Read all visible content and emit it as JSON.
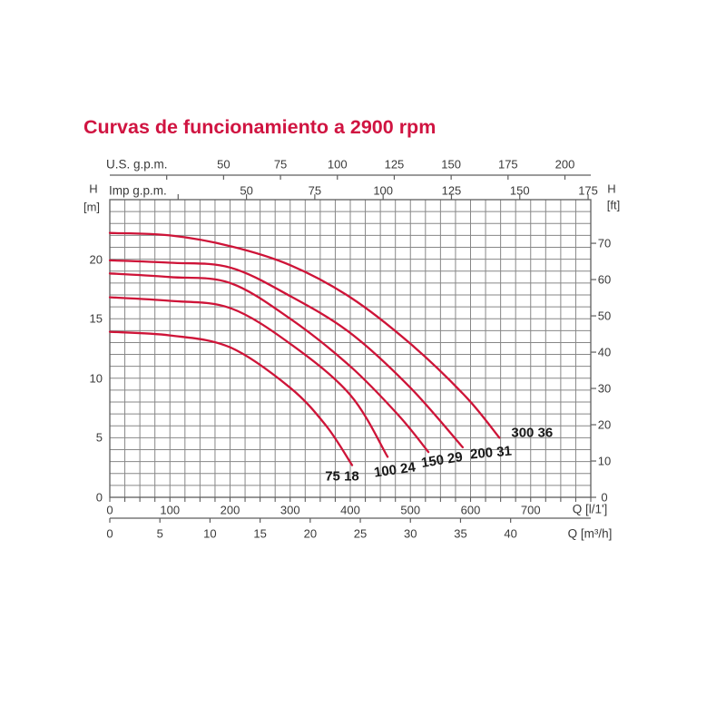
{
  "chart_data": {
    "type": "line",
    "title": "Curvas de funcionamiento a 2900 rpm",
    "title_color": "#d01441",
    "curve_color": "#ce1438",
    "grid_color": "#878787",
    "axis_color": "#5e5e5e",
    "text_color": "#3a3a3a",
    "grid": true,
    "x_axis_top_us": {
      "unit": "U.S. g.p.m.",
      "tick_labels": [
        50,
        75,
        100,
        125,
        150,
        175,
        200
      ],
      "tick_marks": [
        25,
        50,
        75,
        100,
        125,
        150,
        175,
        200
      ],
      "liters_per_unit": 3.785
    },
    "x_axis_top_imp": {
      "unit": "Imp g.p.m.",
      "tick_labels": [
        50,
        75,
        100,
        125,
        150,
        175
      ],
      "tick_marks": [
        25,
        50,
        75,
        100,
        125,
        150,
        175
      ],
      "liters_per_unit": 4.546
    },
    "x_axis_bottom_lmin": {
      "unit": "Q [l/1']",
      "tick_labels": [
        0,
        100,
        200,
        300,
        400,
        500,
        600,
        700
      ],
      "range": [
        0,
        800
      ],
      "minor_step": 25
    },
    "x_axis_bottom_m3h": {
      "unit": "Q [m³/h]",
      "tick_labels": [
        0,
        5,
        10,
        15,
        20,
        25,
        30,
        35,
        40
      ],
      "liters_per_unit": 16.6667
    },
    "y_axis_left": {
      "name": "H",
      "unit": "[m]",
      "tick_labels": [
        0,
        5,
        10,
        15,
        20
      ],
      "range": [
        0,
        25
      ],
      "minor_step": 1
    },
    "y_axis_right": {
      "name": "H",
      "unit": "[ft]",
      "tick_labels": [
        0,
        10,
        20,
        30,
        40,
        50,
        60,
        70
      ],
      "meters_per_unit": 0.3048
    },
    "series": [
      {
        "name": "75 18",
        "points": [
          [
            0,
            13.9
          ],
          [
            100,
            13.6
          ],
          [
            200,
            12.6
          ],
          [
            300,
            9.2
          ],
          [
            360,
            6.0
          ],
          [
            403,
            2.7
          ]
        ],
        "label_offset": [
          -11,
          12
        ],
        "label_rotation_deg": 0
      },
      {
        "name": "100 24",
        "points": [
          [
            0,
            16.8
          ],
          [
            100,
            16.5
          ],
          [
            200,
            15.9
          ],
          [
            300,
            12.9
          ],
          [
            400,
            8.6
          ],
          [
            462,
            3.4
          ]
        ],
        "label_offset": [
          8,
          15
        ],
        "label_rotation_deg": -8
      },
      {
        "name": "150 29",
        "points": [
          [
            0,
            18.8
          ],
          [
            100,
            18.5
          ],
          [
            200,
            18.0
          ],
          [
            300,
            15.0
          ],
          [
            400,
            11.0
          ],
          [
            480,
            6.9
          ],
          [
            530,
            3.8
          ]
        ],
        "label_offset": [
          15,
          9
        ],
        "label_rotation_deg": -9
      },
      {
        "name": "200 31",
        "points": [
          [
            0,
            19.9
          ],
          [
            100,
            19.7
          ],
          [
            200,
            19.3
          ],
          [
            300,
            16.9
          ],
          [
            400,
            13.8
          ],
          [
            500,
            9.2
          ],
          [
            587,
            4.2
          ]
        ],
        "label_offset": [
          31,
          6
        ],
        "label_rotation_deg": -5
      },
      {
        "name": "300 36",
        "points": [
          [
            0,
            22.2
          ],
          [
            100,
            22.0
          ],
          [
            200,
            21.1
          ],
          [
            300,
            19.5
          ],
          [
            400,
            16.8
          ],
          [
            500,
            12.9
          ],
          [
            593,
            8.4
          ],
          [
            648,
            5.0
          ]
        ],
        "label_offset": [
          36,
          -5
        ],
        "label_rotation_deg": 0
      }
    ]
  }
}
